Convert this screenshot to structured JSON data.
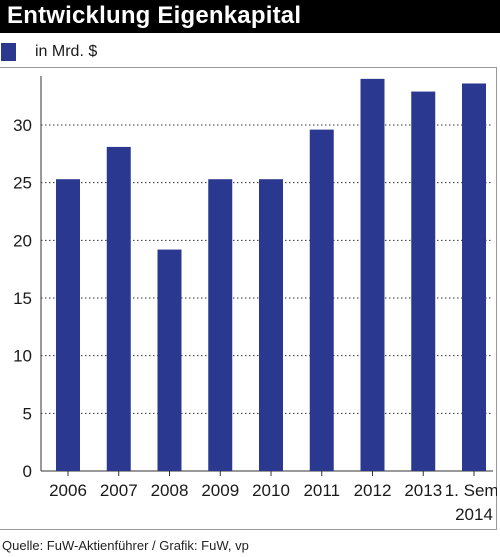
{
  "title": "Entwicklung Eigenkapital",
  "legend_label": "in Mrd. $",
  "source": "Quelle: FuW-Aktienführer / Grafik: FuW, vp",
  "colors": {
    "bar": "#2b3890",
    "title_bg": "#000000",
    "title_text": "#ffffff"
  },
  "chart_data": {
    "type": "bar",
    "title": "Entwicklung Eigenkapital",
    "xlabel": "",
    "ylabel": "",
    "unit": "in Mrd. $",
    "categories": [
      [
        "2006"
      ],
      [
        "2007"
      ],
      [
        "2008"
      ],
      [
        "2009"
      ],
      [
        "2010"
      ],
      [
        "2011"
      ],
      [
        "2012"
      ],
      [
        "2013"
      ],
      [
        "1. Sem.",
        "2014"
      ]
    ],
    "values": [
      25.3,
      28.1,
      19.2,
      25.3,
      25.3,
      29.6,
      34.0,
      32.9,
      33.6
    ],
    "yticks": [
      0,
      5,
      10,
      15,
      20,
      25,
      30
    ],
    "ylim": [
      0,
      36
    ],
    "grid": true,
    "legend": "top-left"
  }
}
